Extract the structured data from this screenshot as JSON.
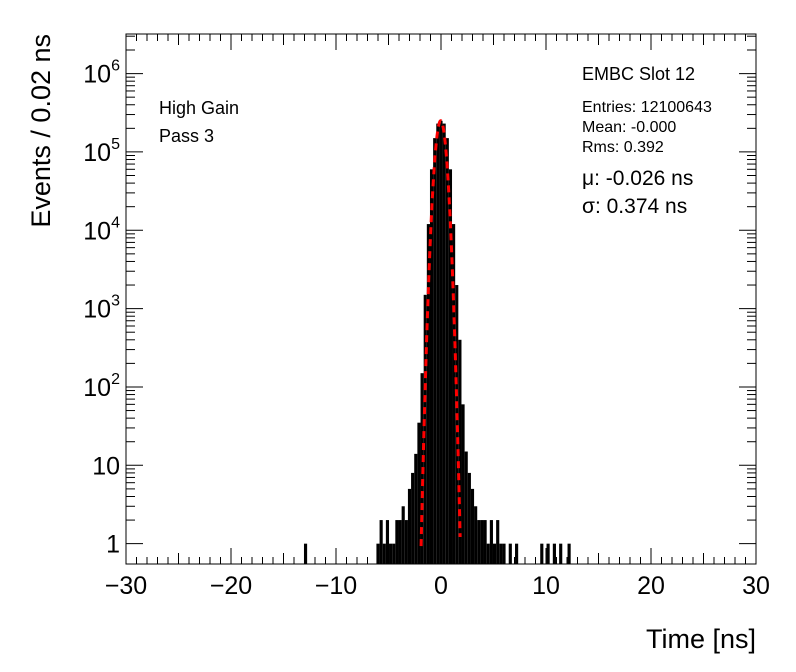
{
  "chart_data": {
    "type": "histogram",
    "xlabel": "Time [ns]",
    "ylabel": "Events / 0.02 ns",
    "xlim": [
      -30,
      30
    ],
    "ylim": [
      0.55,
      3200000
    ],
    "y_scale": "log",
    "grid": false,
    "x_ticks": [
      "−30",
      "−20",
      "−10",
      "0",
      "10",
      "20",
      "30"
    ],
    "y_ticks": [
      {
        "base": "1",
        "exp": ""
      },
      {
        "base": "10",
        "exp": ""
      },
      {
        "base": "10",
        "exp": "2"
      },
      {
        "base": "10",
        "exp": "3"
      },
      {
        "base": "10",
        "exp": "4"
      },
      {
        "base": "10",
        "exp": "5"
      },
      {
        "base": "10",
        "exp": "6"
      }
    ],
    "series": [
      {
        "kind": "histogram",
        "color": "#000000",
        "x": [
          -12.9,
          -6.0,
          -5.7,
          -5.4,
          -5.1,
          -4.8,
          -4.5,
          -4.2,
          -3.9,
          -3.6,
          -3.3,
          -3.0,
          -2.7,
          -2.4,
          -2.1,
          -1.8,
          -1.5,
          -1.2,
          -0.9,
          -0.6,
          -0.3,
          0.0,
          0.3,
          0.6,
          0.9,
          1.2,
          1.5,
          1.8,
          2.1,
          2.4,
          2.7,
          3.0,
          3.3,
          3.6,
          3.9,
          4.2,
          4.5,
          4.8,
          5.1,
          5.4,
          5.7,
          6.0,
          6.6,
          7.2,
          9.6,
          10.2,
          10.8,
          11.4,
          12.2
        ],
        "values": [
          1,
          1,
          2,
          1,
          2,
          1,
          1,
          2,
          2,
          3,
          2,
          5,
          8,
          14,
          35,
          150,
          1500,
          12000,
          60000,
          150000,
          230000,
          250000,
          230000,
          150000,
          60000,
          12000,
          2000,
          400,
          60,
          15,
          8,
          5,
          3,
          2,
          2,
          2,
          1,
          2,
          1,
          2,
          1,
          1,
          1,
          1,
          1,
          1,
          1,
          1,
          1
        ]
      },
      {
        "kind": "fit",
        "color": "#ff0000",
        "style": "dashed",
        "function": "gaussian",
        "mu": -0.026,
        "sigma": 0.374,
        "amplitude": 250000
      }
    ]
  },
  "annotations": {
    "gain": "High Gain",
    "pass": "Pass 3",
    "slot": "EMBC Slot 12",
    "entries": "Entries: 12100643",
    "mean": "Mean: -0.000",
    "rms": "Rms: 0.392",
    "mu": "μ: -0.026 ns",
    "sigma": "σ: 0.374 ns"
  }
}
